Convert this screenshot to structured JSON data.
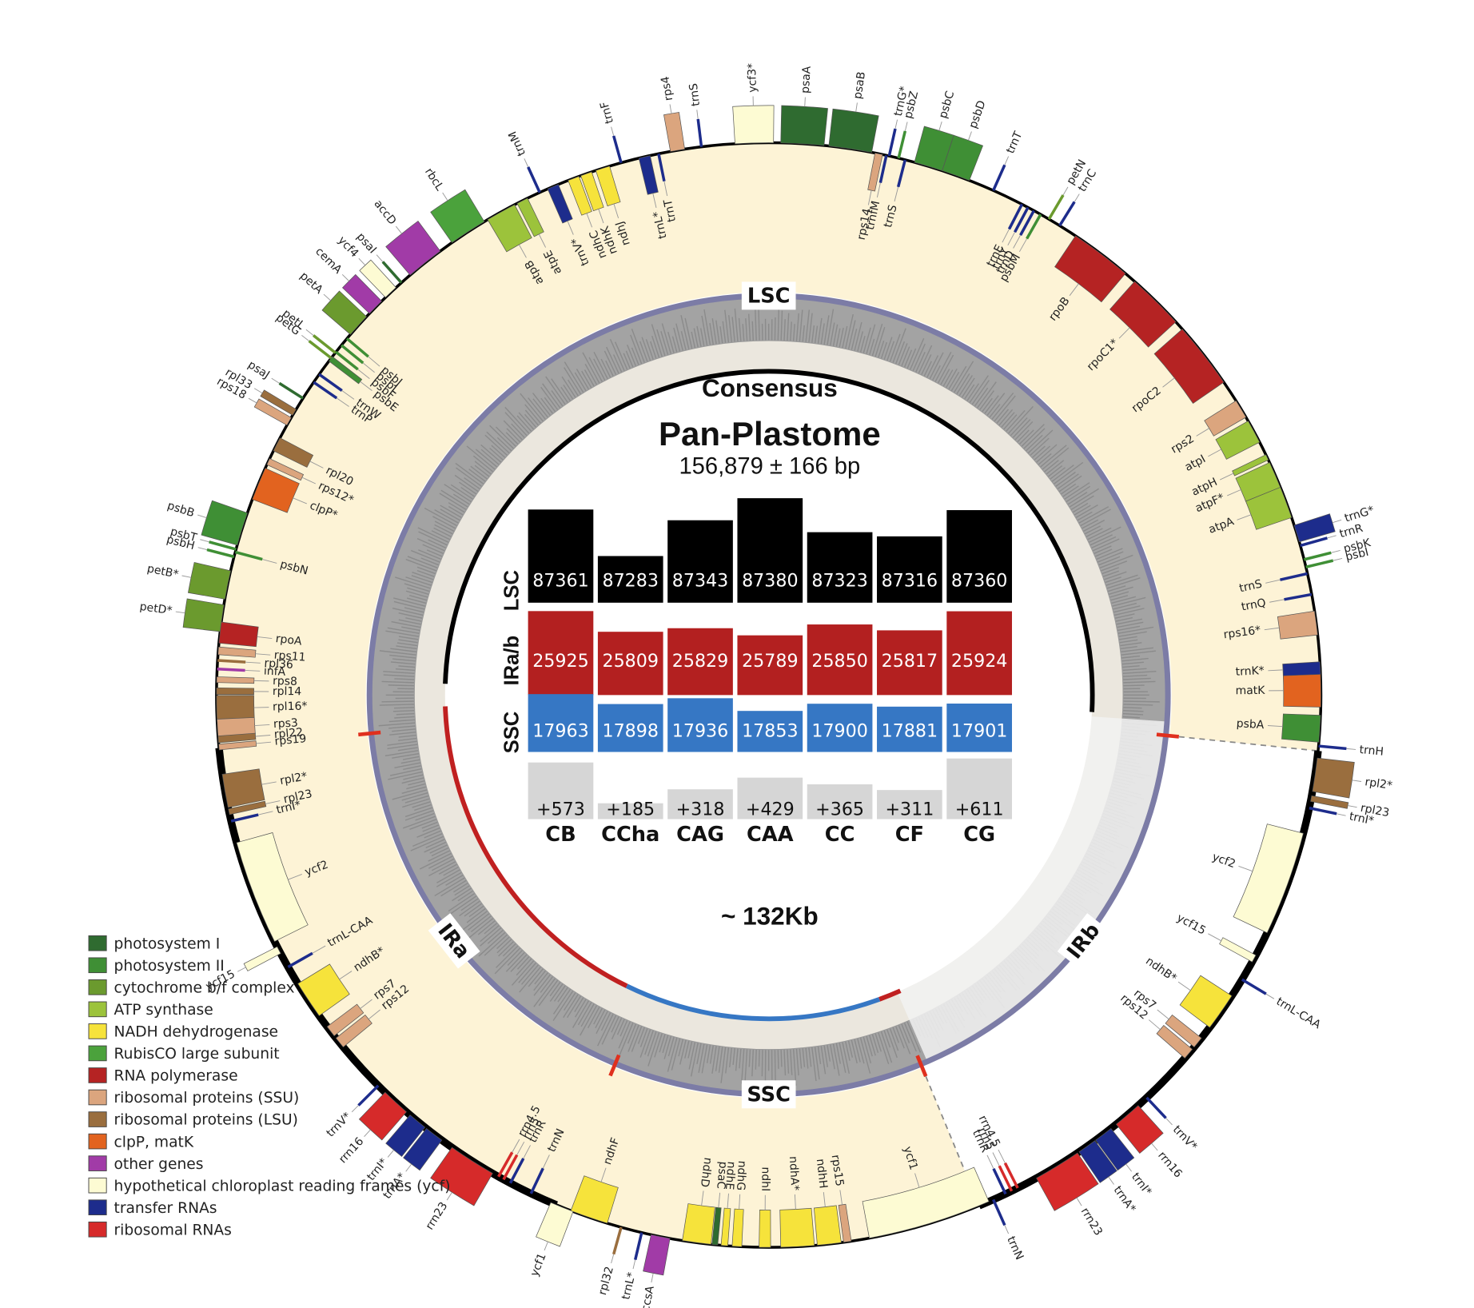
{
  "center": {
    "consensus": "Consensus",
    "title": "Pan-Plastome",
    "subtitle": "156,879 ± 166 bp",
    "span": "~ 132Kb"
  },
  "regions": {
    "lsc": "LSC",
    "ssc": "SSC",
    "ira": "IRa",
    "irb": "IRb"
  },
  "comparison": {
    "row_labels": [
      "LSC",
      "IRa/b",
      "SSC"
    ],
    "accessions": [
      "CB",
      "CCha",
      "CAG",
      "CAA",
      "CC",
      "CF",
      "CG"
    ],
    "lsc": [
      87361,
      87283,
      87343,
      87380,
      87323,
      87316,
      87360
    ],
    "ir": [
      25925,
      25809,
      25829,
      25789,
      25850,
      25817,
      25924
    ],
    "ssc": [
      17963,
      17898,
      17936,
      17853,
      17900,
      17881,
      17901
    ],
    "extra": [
      {
        "value": 573,
        "label": "+573"
      },
      {
        "value": 185,
        "label": "+185"
      },
      {
        "value": 318,
        "label": "+318"
      },
      {
        "value": 429,
        "label": "+429"
      },
      {
        "value": 365,
        "label": "+365"
      },
      {
        "value": 311,
        "label": "+311"
      },
      {
        "value": 611,
        "label": "+611"
      }
    ],
    "colors": [
      "#000000",
      "#b32020",
      "#3677c4",
      "#d6d6d6"
    ]
  },
  "legend": [
    {
      "label": "photosystem I",
      "color": "#2f6b30"
    },
    {
      "label": "photosystem II",
      "color": "#3f8f35"
    },
    {
      "label": "cytochrome b/f complex",
      "color": "#6b9a2e"
    },
    {
      "label": "ATP synthase",
      "color": "#9cc33b"
    },
    {
      "label": "NADH dehydrogenase",
      "color": "#f6e33b"
    },
    {
      "label": "RubisCO large subunit",
      "color": "#4ba23c"
    },
    {
      "label": "RNA polymerase",
      "color": "#b52323"
    },
    {
      "label": "ribosomal proteins (SSU)",
      "color": "#dba57e"
    },
    {
      "label": "ribosomal proteins (LSU)",
      "color": "#9a6e3e"
    },
    {
      "label": "clpP, matK",
      "color": "#e2631f"
    },
    {
      "label": "other genes",
      "color": "#a13ba7"
    },
    {
      "label": "hypothetical chloroplast reading frames (ycf)",
      "color": "#fdfbd3"
    },
    {
      "label": "transfer RNAs",
      "color": "#1d2c8c"
    },
    {
      "label": "ribosomal RNAs",
      "color": "#d62a2a"
    }
  ],
  "genes": [
    {
      "name": "psaA",
      "color": "#2f6b30"
    },
    {
      "name": "psaB",
      "color": "#2f6b30"
    },
    {
      "name": "rps14",
      "color": "#dba57e"
    },
    {
      "name": "trnfM",
      "color": "#1d2c8c"
    },
    {
      "name": "ycf3*",
      "color": "#fdfbd3"
    },
    {
      "name": "trnS",
      "color": "#1d2c8c"
    },
    {
      "name": "rps4",
      "color": "#dba57e"
    },
    {
      "name": "trnT",
      "color": "#1d2c8c"
    },
    {
      "name": "trnL*",
      "color": "#1d2c8c"
    },
    {
      "name": "trnF",
      "color": "#1d2c8c"
    },
    {
      "name": "ndhJ",
      "color": "#f6e33b"
    },
    {
      "name": "ndhK",
      "color": "#f6e33b"
    },
    {
      "name": "ndhC",
      "color": "#f6e33b"
    },
    {
      "name": "trnV*",
      "color": "#1d2c8c"
    },
    {
      "name": "trnM",
      "color": "#1d2c8c"
    },
    {
      "name": "atpE",
      "color": "#9cc33b"
    },
    {
      "name": "atpB",
      "color": "#9cc33b"
    },
    {
      "name": "rbcL",
      "color": "#4ba23c"
    },
    {
      "name": "accD",
      "color": "#a13ba7"
    },
    {
      "name": "psaI",
      "color": "#2f6b30"
    },
    {
      "name": "ycf4",
      "color": "#fdfbd3"
    },
    {
      "name": "cemA",
      "color": "#a13ba7"
    },
    {
      "name": "petA",
      "color": "#6b9a2e"
    },
    {
      "name": "petL",
      "color": "#6b9a2e"
    },
    {
      "name": "petG",
      "color": "#6b9a2e"
    },
    {
      "name": "psbJ",
      "color": "#3f8f35"
    },
    {
      "name": "psbL",
      "color": "#3f8f35"
    },
    {
      "name": "psbF",
      "color": "#3f8f35"
    },
    {
      "name": "psbE",
      "color": "#3f8f35"
    },
    {
      "name": "trnW",
      "color": "#1d2c8c"
    },
    {
      "name": "trnP",
      "color": "#1d2c8c"
    },
    {
      "name": "psaJ",
      "color": "#2f6b30"
    },
    {
      "name": "rpl33",
      "color": "#9a6e3e"
    },
    {
      "name": "rps18",
      "color": "#dba57e"
    },
    {
      "name": "rpl20",
      "color": "#9a6e3e"
    },
    {
      "name": "rps12*",
      "color": "#dba57e"
    },
    {
      "name": "clpP*",
      "color": "#e2631f"
    },
    {
      "name": "psbB",
      "color": "#3f8f35"
    },
    {
      "name": "psbT",
      "color": "#3f8f35"
    },
    {
      "name": "psbH",
      "color": "#3f8f35"
    },
    {
      "name": "psbN",
      "color": "#3f8f35"
    },
    {
      "name": "petB*",
      "color": "#6b9a2e"
    },
    {
      "name": "petD*",
      "color": "#6b9a2e"
    },
    {
      "name": "rpoA",
      "color": "#b52323"
    },
    {
      "name": "rps11",
      "color": "#dba57e"
    },
    {
      "name": "rpl36",
      "color": "#9a6e3e"
    },
    {
      "name": "infA",
      "color": "#a13ba7"
    },
    {
      "name": "rps8",
      "color": "#dba57e"
    },
    {
      "name": "rpl14",
      "color": "#9a6e3e"
    },
    {
      "name": "rpl16*",
      "color": "#9a6e3e"
    },
    {
      "name": "rps3",
      "color": "#dba57e"
    },
    {
      "name": "rpl22",
      "color": "#9a6e3e"
    },
    {
      "name": "rps19",
      "color": "#dba57e"
    },
    {
      "name": "rpl2*",
      "color": "#9a6e3e"
    },
    {
      "name": "rpl23",
      "color": "#9a6e3e"
    },
    {
      "name": "trnI*",
      "color": "#1d2c8c"
    },
    {
      "name": "ycf2",
      "color": "#fdfbd3"
    },
    {
      "name": "ycf15",
      "color": "#fdfbd3"
    },
    {
      "name": "trnL-CAA",
      "color": "#1d2c8c"
    },
    {
      "name": "ndhB*",
      "color": "#f6e33b"
    },
    {
      "name": "rps7",
      "color": "#dba57e"
    },
    {
      "name": "rps12",
      "color": "#dba57e"
    },
    {
      "name": "trnV*",
      "color": "#1d2c8c"
    },
    {
      "name": "rrn16",
      "color": "#d62a2a"
    },
    {
      "name": "trnI*",
      "color": "#1d2c8c"
    },
    {
      "name": "trnA*",
      "color": "#1d2c8c"
    },
    {
      "name": "rrn23",
      "color": "#d62a2a"
    },
    {
      "name": "rrn4.5",
      "color": "#d62a2a"
    },
    {
      "name": "rrn5",
      "color": "#d62a2a"
    },
    {
      "name": "trnR",
      "color": "#1d2c8c"
    },
    {
      "name": "trnN",
      "color": "#1d2c8c"
    },
    {
      "name": "ycf1",
      "color": "#fdfbd3"
    },
    {
      "name": "ndhF",
      "color": "#f6e33b"
    },
    {
      "name": "rpl32",
      "color": "#9a6e3e"
    },
    {
      "name": "trnL*",
      "color": "#1d2c8c"
    },
    {
      "name": "ccsA",
      "color": "#a13ba7"
    },
    {
      "name": "ndhD",
      "color": "#f6e33b"
    },
    {
      "name": "psaC",
      "color": "#2f6b30"
    },
    {
      "name": "ndhE",
      "color": "#f6e33b"
    },
    {
      "name": "ndhG",
      "color": "#f6e33b"
    },
    {
      "name": "ndhI",
      "color": "#f6e33b"
    },
    {
      "name": "ndhA*",
      "color": "#f6e33b"
    },
    {
      "name": "ndhH",
      "color": "#f6e33b"
    },
    {
      "name": "rps15",
      "color": "#dba57e"
    },
    {
      "name": "ycf1",
      "color": "#fdfbd3"
    },
    {
      "name": "trnN",
      "color": "#1d2c8c"
    },
    {
      "name": "trnR",
      "color": "#1d2c8c"
    },
    {
      "name": "rrn5",
      "color": "#d62a2a"
    },
    {
      "name": "rrn4.5",
      "color": "#d62a2a"
    },
    {
      "name": "rrn23",
      "color": "#d62a2a"
    },
    {
      "name": "trnA*",
      "color": "#1d2c8c"
    },
    {
      "name": "trnI*",
      "color": "#1d2c8c"
    },
    {
      "name": "rrn16",
      "color": "#d62a2a"
    },
    {
      "name": "trnV*",
      "color": "#1d2c8c"
    },
    {
      "name": "rps12",
      "color": "#dba57e"
    },
    {
      "name": "rps7",
      "color": "#dba57e"
    },
    {
      "name": "ndhB*",
      "color": "#f6e33b"
    },
    {
      "name": "trnL-CAA",
      "color": "#1d2c8c"
    },
    {
      "name": "ycf15",
      "color": "#fdfbd3"
    },
    {
      "name": "ycf2",
      "color": "#fdfbd3"
    },
    {
      "name": "trnI*",
      "color": "#1d2c8c"
    },
    {
      "name": "rpl23",
      "color": "#9a6e3e"
    },
    {
      "name": "rpl2*",
      "color": "#9a6e3e"
    },
    {
      "name": "trnH",
      "color": "#1d2c8c"
    },
    {
      "name": "psbA",
      "color": "#3f8f35"
    },
    {
      "name": "matK",
      "color": "#e2631f"
    },
    {
      "name": "trnK*",
      "color": "#1d2c8c"
    },
    {
      "name": "rps16*",
      "color": "#dba57e"
    },
    {
      "name": "trnQ",
      "color": "#1d2c8c"
    },
    {
      "name": "trnS",
      "color": "#1d2c8c"
    },
    {
      "name": "psbI",
      "color": "#3f8f35"
    },
    {
      "name": "psbK",
      "color": "#3f8f35"
    },
    {
      "name": "trnR",
      "color": "#1d2c8c"
    },
    {
      "name": "trnG*",
      "color": "#1d2c8c"
    },
    {
      "name": "atpA",
      "color": "#9cc33b"
    },
    {
      "name": "atpF*",
      "color": "#9cc33b"
    },
    {
      "name": "atpH",
      "color": "#9cc33b"
    },
    {
      "name": "atpI",
      "color": "#9cc33b"
    },
    {
      "name": "rps2",
      "color": "#dba57e"
    },
    {
      "name": "rpoC2",
      "color": "#b52323"
    },
    {
      "name": "rpoC1*",
      "color": "#b52323"
    },
    {
      "name": "rpoB",
      "color": "#b52323"
    },
    {
      "name": "petN",
      "color": "#6b9a2e"
    },
    {
      "name": "trnC",
      "color": "#1d2c8c"
    },
    {
      "name": "psbM",
      "color": "#3f8f35"
    },
    {
      "name": "trnD",
      "color": "#1d2c8c"
    },
    {
      "name": "trnY",
      "color": "#1d2c8c"
    },
    {
      "name": "trnE",
      "color": "#1d2c8c"
    },
    {
      "name": "trnT",
      "color": "#1d2c8c"
    },
    {
      "name": "psbD",
      "color": "#3f8f35"
    },
    {
      "name": "psbC",
      "color": "#3f8f35"
    },
    {
      "name": "trnS",
      "color": "#1d2c8c"
    },
    {
      "name": "psbZ",
      "color": "#3f8f35"
    },
    {
      "name": "trnG*",
      "color": "#1d2c8c"
    }
  ]
}
